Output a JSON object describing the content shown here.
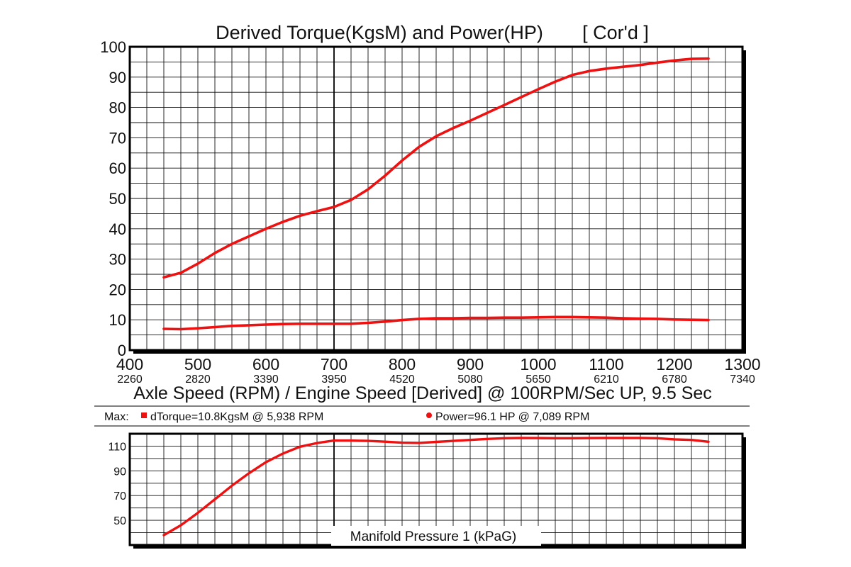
{
  "chart_data": [
    {
      "type": "line",
      "title": "Derived Torque(KgsM) and Power(HP)",
      "subtitle": "[ Cor'd ]",
      "xlabel": "Axle Speed (RPM) / Engine Speed [Derived] @ 100RPM/Sec UP, 9.5 Sec",
      "xlim": [
        400,
        1300
      ],
      "ylim": [
        0,
        100
      ],
      "x_ticks": [
        "400",
        "500",
        "600",
        "700",
        "800",
        "900",
        "1000",
        "1100",
        "1200",
        "1300"
      ],
      "x_secondary_ticks": [
        "2260",
        "2820",
        "3390",
        "3950",
        "4520",
        "5080",
        "5650",
        "6210",
        "6780",
        "7340"
      ],
      "y_ticks": [
        "0",
        "10",
        "20",
        "30",
        "40",
        "50",
        "60",
        "70",
        "80",
        "90",
        "100"
      ],
      "grid": true,
      "series": [
        {
          "key": "power",
          "color": "#ee1111",
          "points": [
            [
              450,
              24
            ],
            [
              475,
              25.5
            ],
            [
              500,
              28.5
            ],
            [
              525,
              32
            ],
            [
              550,
              35
            ],
            [
              575,
              37.5
            ],
            [
              600,
              40
            ],
            [
              625,
              42.3
            ],
            [
              650,
              44.3
            ],
            [
              675,
              45.8
            ],
            [
              700,
              47.2
            ],
            [
              725,
              49.5
            ],
            [
              750,
              53
            ],
            [
              775,
              57.5
            ],
            [
              800,
              62.5
            ],
            [
              825,
              67
            ],
            [
              850,
              70.5
            ],
            [
              875,
              73.2
            ],
            [
              900,
              75.6
            ],
            [
              925,
              78.2
            ],
            [
              950,
              80.8
            ],
            [
              975,
              83.4
            ],
            [
              1000,
              86
            ],
            [
              1025,
              88.5
            ],
            [
              1050,
              90.7
            ],
            [
              1075,
              92
            ],
            [
              1100,
              92.8
            ],
            [
              1125,
              93.4
            ],
            [
              1150,
              94
            ],
            [
              1175,
              94.8
            ],
            [
              1200,
              95.5
            ],
            [
              1225,
              96
            ],
            [
              1250,
              96.1
            ]
          ]
        },
        {
          "key": "torque",
          "color": "#ee1111",
          "points": [
            [
              450,
              7
            ],
            [
              475,
              6.9
            ],
            [
              500,
              7.2
            ],
            [
              525,
              7.6
            ],
            [
              550,
              8
            ],
            [
              575,
              8.2
            ],
            [
              600,
              8.4
            ],
            [
              625,
              8.6
            ],
            [
              650,
              8.7
            ],
            [
              675,
              8.7
            ],
            [
              700,
              8.7
            ],
            [
              725,
              8.7
            ],
            [
              750,
              9
            ],
            [
              775,
              9.4
            ],
            [
              800,
              9.9
            ],
            [
              825,
              10.3
            ],
            [
              850,
              10.5
            ],
            [
              875,
              10.5
            ],
            [
              900,
              10.6
            ],
            [
              925,
              10.6
            ],
            [
              950,
              10.7
            ],
            [
              975,
              10.7
            ],
            [
              1000,
              10.8
            ],
            [
              1025,
              10.9
            ],
            [
              1050,
              10.9
            ],
            [
              1075,
              10.8
            ],
            [
              1100,
              10.7
            ],
            [
              1125,
              10.5
            ],
            [
              1150,
              10.4
            ],
            [
              1175,
              10.3
            ],
            [
              1200,
              10.1
            ],
            [
              1225,
              10
            ],
            [
              1250,
              9.9
            ]
          ]
        }
      ]
    },
    {
      "type": "line",
      "xlabel": "Manifold Pressure 1 (kPaG)",
      "xlim": [
        400,
        1300
      ],
      "ylim": [
        30,
        120
      ],
      "y_ticks": [
        50,
        70,
        90,
        110
      ],
      "grid": true,
      "series": [
        {
          "key": "manifold",
          "color": "#ee1111",
          "points": [
            [
              450,
              38
            ],
            [
              475,
              46
            ],
            [
              500,
              56
            ],
            [
              525,
              67
            ],
            [
              550,
              78
            ],
            [
              575,
              88
            ],
            [
              600,
              97
            ],
            [
              625,
              104
            ],
            [
              650,
              109.5
            ],
            [
              675,
              112.5
            ],
            [
              700,
              114.5
            ],
            [
              725,
              114.5
            ],
            [
              750,
              114.2
            ],
            [
              775,
              113.6
            ],
            [
              800,
              112.8
            ],
            [
              825,
              112.6
            ],
            [
              850,
              113.4
            ],
            [
              875,
              114.2
            ],
            [
              900,
              115
            ],
            [
              925,
              115.8
            ],
            [
              950,
              116.4
            ],
            [
              975,
              116.6
            ],
            [
              1000,
              116.5
            ],
            [
              1025,
              116.4
            ],
            [
              1050,
              116.4
            ],
            [
              1075,
              116.5
            ],
            [
              1100,
              116.6
            ],
            [
              1125,
              116.6
            ],
            [
              1150,
              116.6
            ],
            [
              1175,
              116.4
            ],
            [
              1200,
              115.5
            ],
            [
              1225,
              115
            ],
            [
              1250,
              113.5
            ]
          ]
        }
      ]
    }
  ],
  "max_row": {
    "prefix": "Max:",
    "torque": "dTorque=10.8KgsM @  5,938 RPM",
    "power": "Power=96.1 HP @  7,089 RPM"
  }
}
